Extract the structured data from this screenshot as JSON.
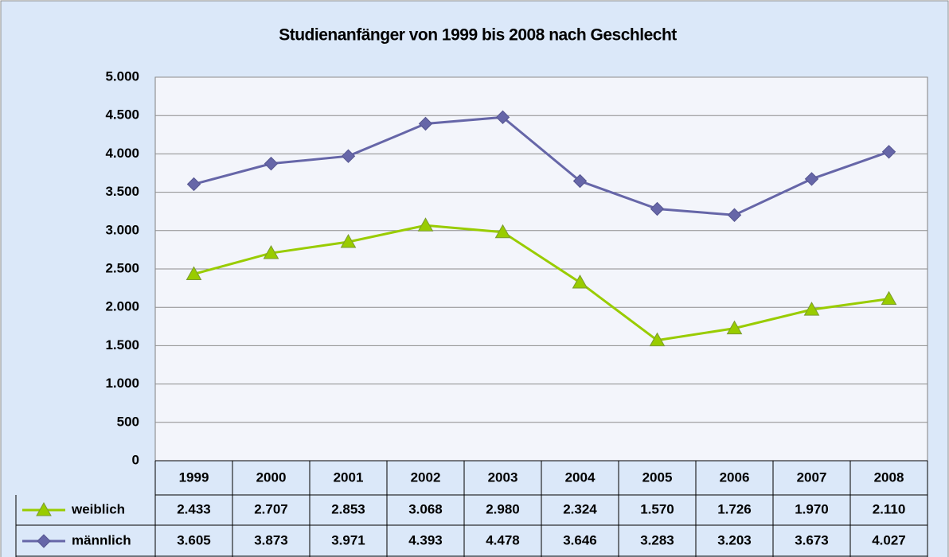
{
  "chart_data": {
    "type": "line",
    "title": "Studienanfänger von 1999 bis 2008 nach Geschlecht",
    "categories": [
      "1999",
      "2000",
      "2001",
      "2002",
      "2003",
      "2004",
      "2005",
      "2006",
      "2007",
      "2008"
    ],
    "series": [
      {
        "name": "weiblich",
        "color": "#99cc00",
        "marker": "triangle",
        "values": [
          2433,
          2707,
          2853,
          3068,
          2980,
          2324,
          1570,
          1726,
          1970,
          2110
        ],
        "value_labels": [
          "2.433",
          "2.707",
          "2.853",
          "3.068",
          "2.980",
          "2.324",
          "1.570",
          "1.726",
          "1.970",
          "2.110"
        ]
      },
      {
        "name": "männlich",
        "color": "#6666a8",
        "marker": "diamond",
        "values": [
          3605,
          3873,
          3971,
          4393,
          4478,
          3646,
          3283,
          3203,
          3673,
          4027
        ],
        "value_labels": [
          "3.605",
          "3.873",
          "3.971",
          "4.393",
          "4.478",
          "3.646",
          "3.283",
          "3.203",
          "3.673",
          "4.027"
        ]
      }
    ],
    "ylim": [
      0,
      5000
    ],
    "yticks": [
      0,
      500,
      {
        "value": 1000,
        "label": "1.000"
      },
      {
        "value": 1500,
        "label": "1.500"
      },
      {
        "value": 2000,
        "label": "2.000"
      },
      {
        "value": 2500,
        "label": "2.500"
      },
      {
        "value": 3000,
        "label": "3.000"
      },
      {
        "value": 3500,
        "label": "3.500"
      },
      {
        "value": 4000,
        "label": "4.000"
      },
      {
        "value": 4500,
        "label": "4.500"
      },
      {
        "value": 5000,
        "label": "5.000"
      }
    ],
    "grid": true
  }
}
